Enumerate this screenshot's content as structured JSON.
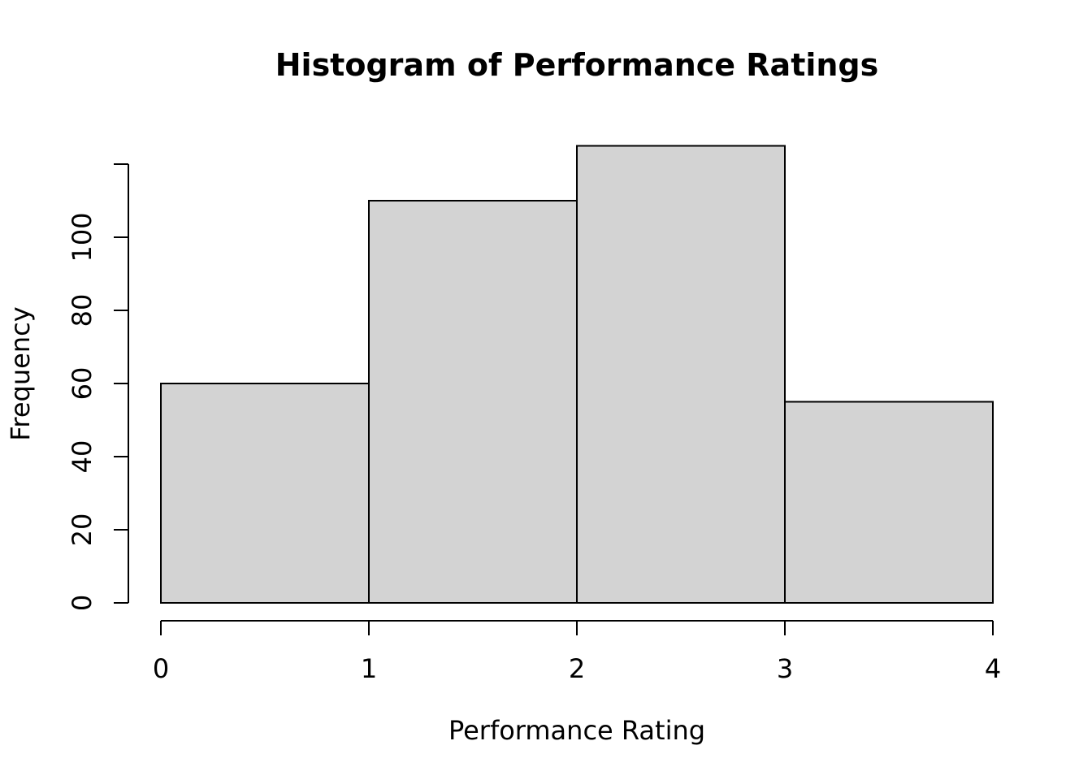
{
  "chart_data": {
    "type": "bar",
    "subtype": "histogram",
    "title": "Histogram of Performance Ratings",
    "xlabel": "Performance Rating",
    "ylabel": "Frequency",
    "bins": [
      {
        "start": 0,
        "end": 1,
        "value": 60
      },
      {
        "start": 1,
        "end": 2,
        "value": 110
      },
      {
        "start": 2,
        "end": 3,
        "value": 125
      },
      {
        "start": 3,
        "end": 4,
        "value": 55
      }
    ],
    "xlim": [
      0,
      4
    ],
    "ylim": [
      0,
      120
    ],
    "x_ticks": [
      0,
      1,
      2,
      3,
      4
    ],
    "y_ticks": [
      0,
      20,
      40,
      60,
      80,
      100
    ],
    "grid": false,
    "legend": "none",
    "bar_fill": "#d3d3d3",
    "bar_stroke": "#000000"
  }
}
